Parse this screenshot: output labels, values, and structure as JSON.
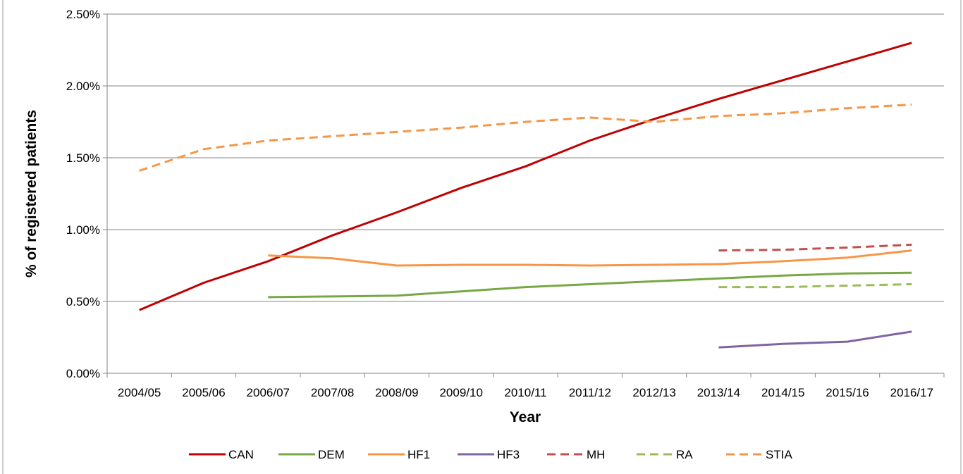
{
  "chart_data": {
    "type": "line",
    "title": "",
    "xlabel": "Year",
    "ylabel": "% of registered patients",
    "categories": [
      "2004/05",
      "2005/06",
      "2006/07",
      "2007/08",
      "2008/09",
      "2009/10",
      "2010/11",
      "2011/12",
      "2012/13",
      "2013/14",
      "2014/15",
      "2015/16",
      "2016/17"
    ],
    "ylim": [
      0,
      2.5
    ],
    "yticks": [
      0,
      0.5,
      1.0,
      1.5,
      2.0,
      2.5
    ],
    "ytick_labels": [
      "0.00%",
      "0.50%",
      "1.00%",
      "1.50%",
      "2.00%",
      "2.50%"
    ],
    "grid": "horizontal",
    "legend": "bottom",
    "series": [
      {
        "name": "CAN",
        "color": "#c00000",
        "dash": "solid",
        "values": [
          0.44,
          0.63,
          0.78,
          0.96,
          1.12,
          1.29,
          1.44,
          1.62,
          1.77,
          1.91,
          2.04,
          2.17,
          2.3
        ]
      },
      {
        "name": "DEM",
        "color": "#77a844",
        "dash": "solid",
        "values": [
          null,
          null,
          0.53,
          0.535,
          0.54,
          0.57,
          0.6,
          0.62,
          0.64,
          0.66,
          0.68,
          0.695,
          0.7
        ]
      },
      {
        "name": "HF1",
        "color": "#f79646",
        "dash": "solid",
        "values": [
          null,
          null,
          0.82,
          0.8,
          0.75,
          0.755,
          0.755,
          0.75,
          0.755,
          0.76,
          0.78,
          0.805,
          0.855
        ]
      },
      {
        "name": "HF3",
        "color": "#8064a2",
        "dash": "solid",
        "values": [
          null,
          null,
          null,
          null,
          null,
          null,
          null,
          null,
          null,
          0.18,
          0.205,
          0.22,
          0.29
        ]
      },
      {
        "name": "MH",
        "color": "#c0504d",
        "dash": "dashed",
        "values": [
          null,
          null,
          null,
          null,
          null,
          null,
          null,
          null,
          null,
          0.855,
          0.86,
          0.875,
          0.895
        ]
      },
      {
        "name": "RA",
        "color": "#9bbb59",
        "dash": "dashed",
        "values": [
          null,
          null,
          null,
          null,
          null,
          null,
          null,
          null,
          null,
          0.6,
          0.6,
          0.61,
          0.62
        ]
      },
      {
        "name": "STIA",
        "color": "#f79646",
        "dash": "dashed",
        "values": [
          1.41,
          1.56,
          1.62,
          1.65,
          1.68,
          1.71,
          1.75,
          1.78,
          1.75,
          1.79,
          1.81,
          1.845,
          1.87
        ]
      }
    ]
  }
}
